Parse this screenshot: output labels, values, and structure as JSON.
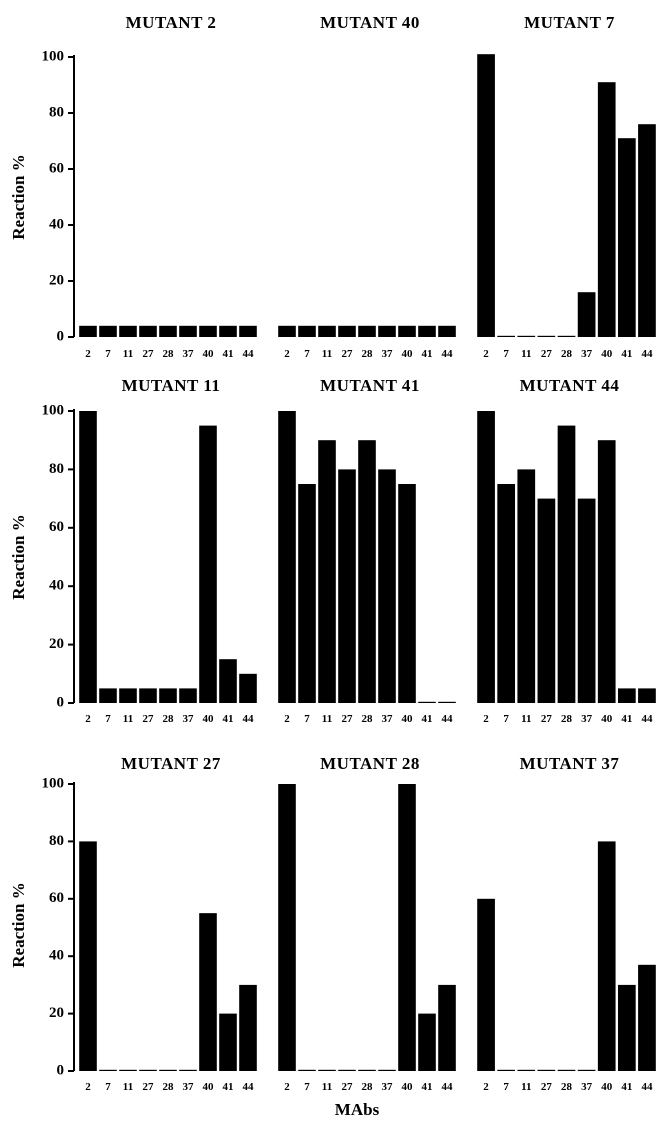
{
  "figure": {
    "ylabel": "Reaction %",
    "xlabel": "MAbs",
    "colors": {
      "bar": "#000000",
      "axis": "#000000"
    }
  },
  "chart_data": [
    {
      "type": "bar",
      "title": "MUTANT 2",
      "categories": [
        "2",
        "7",
        "11",
        "27",
        "28",
        "37",
        "40",
        "41",
        "44"
      ],
      "values": [
        4,
        4,
        4,
        4,
        4,
        4,
        4,
        4,
        4
      ],
      "ylim": [
        0,
        100
      ],
      "yticks": [
        0,
        20,
        40,
        60,
        80,
        100
      ]
    },
    {
      "type": "bar",
      "title": "MUTANT 40",
      "categories": [
        "2",
        "7",
        "11",
        "27",
        "28",
        "37",
        "40",
        "41",
        "44"
      ],
      "values": [
        4,
        4,
        4,
        4,
        4,
        4,
        4,
        4,
        4
      ],
      "ylim": [
        0,
        100
      ],
      "yticks": [
        0,
        20,
        40,
        60,
        80,
        100
      ]
    },
    {
      "type": "bar",
      "title": "MUTANT 7",
      "categories": [
        "2",
        "7",
        "11",
        "27",
        "28",
        "37",
        "40",
        "41",
        "44"
      ],
      "values": [
        101,
        0,
        0,
        0,
        0,
        16,
        91,
        71,
        76
      ],
      "ylim": [
        0,
        100
      ],
      "yticks": [
        0,
        20,
        40,
        60,
        80,
        100
      ]
    },
    {
      "type": "bar",
      "title": "MUTANT 11",
      "categories": [
        "2",
        "7",
        "11",
        "27",
        "28",
        "37",
        "40",
        "41",
        "44"
      ],
      "values": [
        100,
        5,
        5,
        5,
        5,
        5,
        95,
        15,
        10
      ],
      "ylim": [
        0,
        100
      ],
      "yticks": [
        0,
        20,
        40,
        60,
        80,
        100
      ]
    },
    {
      "type": "bar",
      "title": "MUTANT 41",
      "categories": [
        "2",
        "7",
        "11",
        "27",
        "28",
        "37",
        "40",
        "41",
        "44"
      ],
      "values": [
        100,
        75,
        90,
        80,
        90,
        80,
        75,
        0,
        0
      ],
      "ylim": [
        0,
        100
      ],
      "yticks": [
        0,
        20,
        40,
        60,
        80,
        100
      ]
    },
    {
      "type": "bar",
      "title": "MUTANT 44",
      "categories": [
        "2",
        "7",
        "11",
        "27",
        "28",
        "37",
        "40",
        "41",
        "44"
      ],
      "values": [
        100,
        75,
        80,
        70,
        95,
        70,
        90,
        5,
        5
      ],
      "ylim": [
        0,
        100
      ],
      "yticks": [
        0,
        20,
        40,
        60,
        80,
        100
      ]
    },
    {
      "type": "bar",
      "title": "MUTANT 27",
      "categories": [
        "2",
        "7",
        "11",
        "27",
        "28",
        "37",
        "40",
        "41",
        "44"
      ],
      "values": [
        80,
        0,
        0,
        0,
        0,
        0,
        55,
        20,
        30
      ],
      "ylim": [
        0,
        100
      ],
      "yticks": [
        0,
        20,
        40,
        60,
        80,
        100
      ]
    },
    {
      "type": "bar",
      "title": "MUTANT 28",
      "categories": [
        "2",
        "7",
        "11",
        "27",
        "28",
        "37",
        "40",
        "41",
        "44"
      ],
      "values": [
        100,
        0,
        0,
        0,
        0,
        0,
        100,
        20,
        30
      ],
      "ylim": [
        0,
        100
      ],
      "yticks": [
        0,
        20,
        40,
        60,
        80,
        100
      ]
    },
    {
      "type": "bar",
      "title": "MUTANT 37",
      "categories": [
        "2",
        "7",
        "11",
        "27",
        "28",
        "37",
        "40",
        "41",
        "44"
      ],
      "values": [
        60,
        0,
        0,
        0,
        0,
        0,
        80,
        30,
        37
      ],
      "ylim": [
        0,
        100
      ],
      "yticks": [
        0,
        20,
        40,
        60,
        80,
        100
      ]
    }
  ]
}
